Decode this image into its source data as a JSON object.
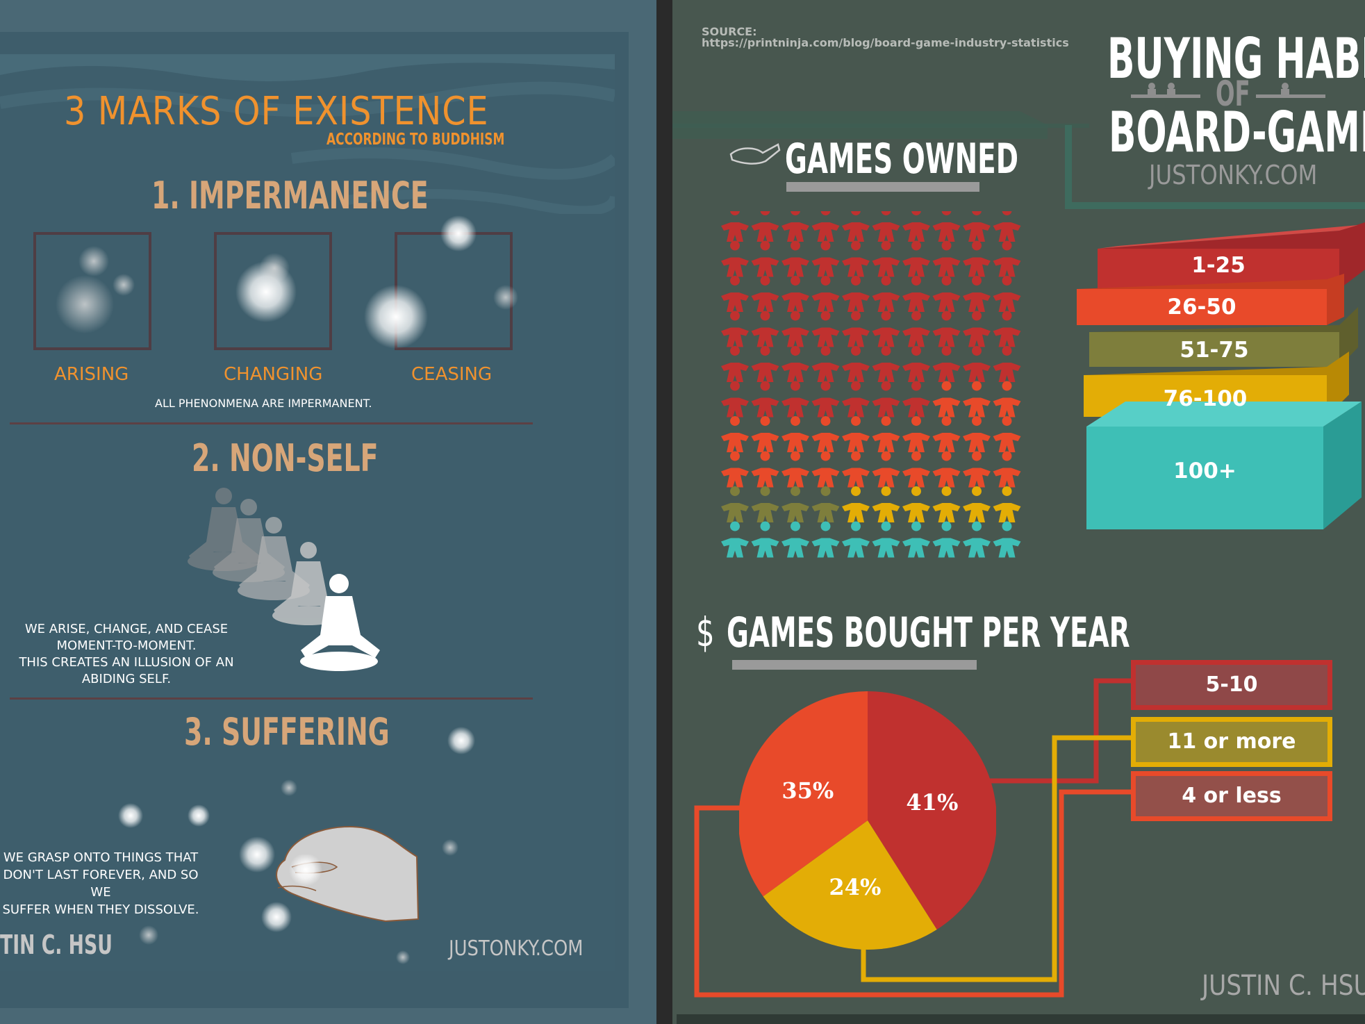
{
  "left": {
    "title": "3 MARKS OF EXISTENCE",
    "subtitle": "ACCORDING TO BUDDHISM",
    "section1": {
      "heading": "1. IMPERMANENCE",
      "labels": [
        "ARISING",
        "CHANGING",
        "CEASING"
      ],
      "caption": "ALL PHENONMENA ARE  IMPERMANENT."
    },
    "section2": {
      "heading": "2. NON-SELF",
      "caption": [
        "WE ARISE, CHANGE, AND CEASE",
        "MOMENT-TO-MOMENT.",
        "THIS CREATES AN ILLUSION OF AN",
        "ABIDING SELF."
      ]
    },
    "section3": {
      "heading": "3. SUFFERING",
      "caption": [
        "WE GRASP ONTO THINGS THAT",
        "DON'T LAST FOREVER, AND SO WE",
        "SUFFER WHEN THEY DISSOLVE."
      ]
    },
    "author": "TIN C. HSU",
    "site": "JUSTONKY.COM"
  },
  "right": {
    "source_label": "SOURCE:",
    "source_url": "https://printninja.com/blog/board-game-industry-statistics",
    "title_line1": "BUYING HABITS",
    "title_of": "OF",
    "title_line2": "BOARD-GAMER",
    "site": "JUSTONKY.COM",
    "games_owned_heading": "GAMES OWNED",
    "games_bought_heading": "GAMES BOUGHT PER YEAR",
    "dollar_icon": "$",
    "author": "JUSTIN C. HSU",
    "legend_owned": [
      {
        "label": "1-25",
        "color": "#c0312f"
      },
      {
        "label": "26-50",
        "color": "#e84a2a"
      },
      {
        "label": "51-75",
        "color": "#7e7e3c"
      },
      {
        "label": "76-100",
        "color": "#e3ad06"
      },
      {
        "label": "100+",
        "color": "#3ebfb6"
      }
    ],
    "legend_bought": [
      {
        "label": "5-10",
        "color": "#c0312f"
      },
      {
        "label": "11 or more",
        "color": "#e3ad06"
      },
      {
        "label": "4 or less",
        "color": "#e84a2a"
      }
    ]
  },
  "chart_data": [
    {
      "type": "pictograph",
      "title": "GAMES OWNED",
      "categories": [
        "1-25",
        "26-50",
        "51-75",
        "76-100",
        "100+"
      ],
      "values": [
        57,
        23,
        4,
        6,
        10
      ],
      "unit": "meeples out of 100",
      "colors": [
        "#c0312f",
        "#e84a2a",
        "#7e7e3c",
        "#e3ad06",
        "#3ebfb6"
      ]
    },
    {
      "type": "pie",
      "title": "GAMES BOUGHT PER YEAR",
      "categories": [
        "5-10",
        "11 or more",
        "4 or less"
      ],
      "values": [
        41,
        24,
        35
      ],
      "labels": [
        "41%",
        "24%",
        "35%"
      ],
      "colors": [
        "#c0312f",
        "#e3ad06",
        "#e84a2a"
      ]
    }
  ]
}
